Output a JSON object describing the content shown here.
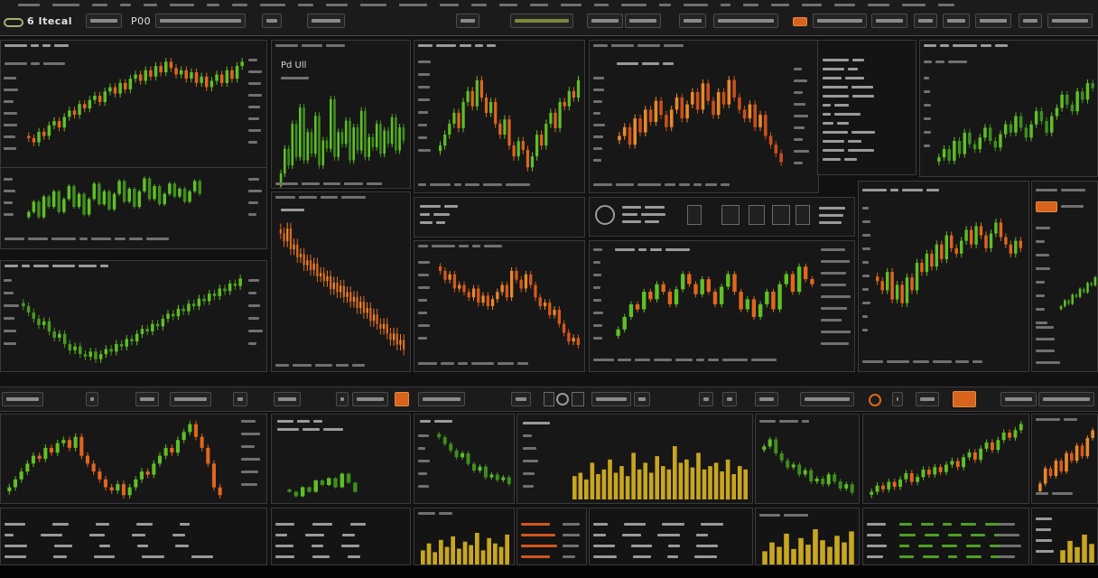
{
  "toolbar": {
    "title": "6 Itecal",
    "code": "P00"
  },
  "watch_panel": {
    "header": "Pd Ull"
  },
  "colors": {
    "background": "#111111",
    "panel": "#171717",
    "green": "#5fbf26",
    "orange": "#e0661e",
    "yellow": "#c9a620"
  },
  "chart_data": [
    {
      "type": "candlestick",
      "close": [
        42,
        40,
        45,
        43,
        48,
        50,
        47,
        52,
        55,
        53,
        58,
        56,
        60,
        62,
        59,
        64,
        66,
        63,
        68,
        65,
        70,
        72,
        69,
        74,
        71,
        76,
        73,
        78,
        75,
        72,
        74,
        70,
        73,
        68,
        71,
        66,
        69,
        72,
        68,
        74,
        70,
        76,
        78
      ],
      "up_color": "#5fbf26",
      "down_color": "#e0661e"
    },
    {
      "type": "candlestick",
      "close": [
        50,
        54,
        48,
        56,
        52,
        58,
        50,
        55,
        60,
        52,
        57,
        49,
        55,
        61,
        53,
        58,
        51,
        57,
        62,
        54,
        59,
        52,
        58,
        63,
        55,
        60,
        53,
        57,
        61,
        56,
        59,
        54,
        58,
        62,
        57
      ],
      "up_color": "#5fbf26",
      "down_color": "#3f8e1c"
    },
    {
      "type": "candlestick",
      "close": [
        60,
        55,
        50,
        45,
        48,
        40,
        35,
        38,
        30,
        25,
        28,
        22,
        20,
        24,
        18,
        22,
        26,
        24,
        30,
        28,
        34,
        32,
        38,
        42,
        40,
        46,
        44,
        50,
        54,
        52,
        58,
        56,
        62,
        60,
        66,
        64,
        70,
        68,
        74,
        72,
        78,
        76,
        82
      ],
      "up_color": "#5fbf26",
      "down_color": "#4a9a20"
    },
    {
      "type": "candlestick",
      "close": [
        30,
        45,
        35,
        60,
        40,
        70,
        38,
        55,
        42,
        65,
        35,
        50,
        45,
        75,
        40,
        55,
        48,
        62,
        38,
        58,
        44,
        68,
        40,
        52,
        46,
        60,
        42,
        56,
        48,
        64,
        44,
        58,
        50
      ],
      "up_color": "#5fbf26",
      "down_color": "#3f8e1c"
    },
    {
      "type": "candlestick",
      "close": [
        85,
        80,
        88,
        75,
        78,
        70,
        72,
        65,
        68,
        62,
        66,
        58,
        60,
        55,
        58,
        50,
        54,
        48,
        52,
        45,
        48,
        42,
        45,
        38,
        42,
        35,
        38,
        30,
        34,
        28,
        25,
        28,
        22,
        18,
        22,
        15,
        18,
        12
      ],
      "up_color": "#e8892a",
      "down_color": "#e0661e"
    },
    {
      "type": "candlestick",
      "close": [
        40,
        45,
        50,
        55,
        48,
        60,
        65,
        58,
        70,
        62,
        55,
        60,
        50,
        45,
        52,
        40,
        35,
        42,
        38,
        30,
        35,
        45,
        40,
        50,
        55,
        48,
        60,
        58,
        65,
        62,
        70
      ],
      "up_color": "#5fbf26",
      "down_color": "#e0661e"
    },
    {
      "type": "candlestick",
      "close": [
        60,
        55,
        58,
        50,
        52,
        48,
        45,
        50,
        42,
        46,
        40,
        44,
        48,
        52,
        45,
        60,
        55,
        50,
        58,
        52,
        45,
        40,
        42,
        35,
        38,
        30,
        25,
        20,
        22,
        18
      ],
      "up_color": "#e8892a",
      "down_color": "#d9571a"
    },
    {
      "type": "candlestick",
      "close": [
        40,
        45,
        35,
        50,
        42,
        55,
        48,
        60,
        52,
        45,
        55,
        62,
        50,
        58,
        65,
        55,
        70,
        60,
        52,
        65,
        58,
        72,
        62,
        55,
        50,
        58,
        45,
        52,
        40,
        35,
        30,
        25
      ],
      "up_color": "#e8892a",
      "down_color": "#c9501a"
    },
    {
      "type": "candlestick",
      "close": [
        40,
        45,
        50,
        48,
        55,
        52,
        58,
        55,
        50,
        56,
        62,
        58,
        54,
        60,
        55,
        50,
        57,
        62,
        55,
        48,
        52,
        45,
        50,
        55,
        48,
        58,
        62,
        55,
        65,
        60,
        58
      ],
      "up_color": "#5fbf26",
      "down_color": "#e0661e"
    },
    {
      "type": "candlestick",
      "close": [
        30,
        35,
        28,
        40,
        32,
        45,
        38,
        35,
        42,
        48,
        40,
        36,
        44,
        50,
        45,
        55,
        48,
        42,
        50,
        58,
        52,
        45,
        55,
        60,
        68,
        62,
        58,
        70,
        65,
        75,
        72
      ],
      "up_color": "#5fbf26",
      "down_color": "#3f8e1c"
    },
    {
      "type": "candlestick",
      "close": [
        40,
        35,
        45,
        30,
        38,
        28,
        42,
        35,
        50,
        45,
        55,
        48,
        60,
        52,
        65,
        58,
        55,
        62,
        68,
        60,
        70,
        65,
        58,
        66,
        72,
        64,
        60,
        55,
        62,
        58
      ],
      "up_color": "#5fbf26",
      "down_color": "#e0661e"
    },
    {
      "type": "candlestick",
      "close": [
        40,
        45,
        42,
        50,
        48,
        55,
        52,
        60,
        58,
        65
      ],
      "up_color": "#5fbf26",
      "down_color": "#3f8e1c"
    },
    {
      "type": "candlestick",
      "close": [
        30,
        35,
        40,
        45,
        50,
        48,
        55,
        52,
        58,
        60,
        55,
        62,
        50,
        45,
        40,
        35,
        30,
        28,
        32,
        25,
        30,
        35,
        40,
        38,
        45,
        50,
        55,
        52,
        60,
        65,
        70,
        62,
        55,
        45,
        30,
        25
      ],
      "up_color": "#5fbf26",
      "down_color": "#e0661e"
    },
    {
      "type": "candlestick",
      "close": [
        50,
        48,
        52,
        50,
        55,
        53,
        56,
        52,
        58,
        54,
        50
      ],
      "up_color": "#5fbf26",
      "down_color": "#3f8e1c"
    },
    {
      "type": "candlestick",
      "close": [
        70,
        65,
        60,
        55,
        58,
        50,
        45,
        48,
        40,
        42,
        38,
        40,
        35
      ],
      "up_color": "#5fbf26",
      "down_color": "#3f8e1c"
    },
    {
      "type": "bar",
      "values": [
        35,
        40,
        30,
        55,
        38,
        45,
        60,
        40,
        50,
        35,
        70,
        45,
        55,
        40,
        65,
        50,
        45,
        80,
        55,
        60,
        48,
        70,
        45,
        50,
        55,
        42,
        60,
        38,
        50,
        45
      ],
      "color": "#c9a620"
    },
    {
      "type": "candlestick",
      "close": [
        65,
        70,
        60,
        55,
        50,
        52,
        45,
        48,
        40,
        42,
        38,
        45,
        40,
        35,
        38,
        32
      ],
      "up_color": "#5fbf26",
      "down_color": "#3f8e1c"
    },
    {
      "type": "candlestick",
      "close": [
        30,
        35,
        32,
        38,
        34,
        40,
        45,
        38,
        42,
        48,
        44,
        50,
        46,
        52,
        55,
        50,
        58,
        62,
        56,
        65,
        70,
        64,
        72,
        78,
        74,
        80,
        85
      ],
      "up_color": "#5fbf26",
      "down_color": "#e0661e"
    },
    {
      "type": "candlestick",
      "close": [
        30,
        40,
        35,
        45,
        38,
        50,
        45,
        55,
        48,
        60,
        65
      ],
      "up_color": "#e8892a",
      "down_color": "#d9571a"
    },
    {
      "type": "bar",
      "values": [
        40,
        60,
        35,
        70,
        50,
        80,
        45,
        65,
        55,
        90,
        40,
        75,
        60,
        50,
        85
      ],
      "color": "#c9a620"
    },
    {
      "type": "bar",
      "values": [
        30,
        50,
        40,
        70,
        35,
        60,
        45,
        80,
        55,
        40,
        65,
        50,
        75
      ],
      "color": "#c9a620"
    },
    {
      "type": "bar",
      "values": [
        40,
        70,
        50,
        90,
        60
      ],
      "color": "#c9a620"
    }
  ]
}
